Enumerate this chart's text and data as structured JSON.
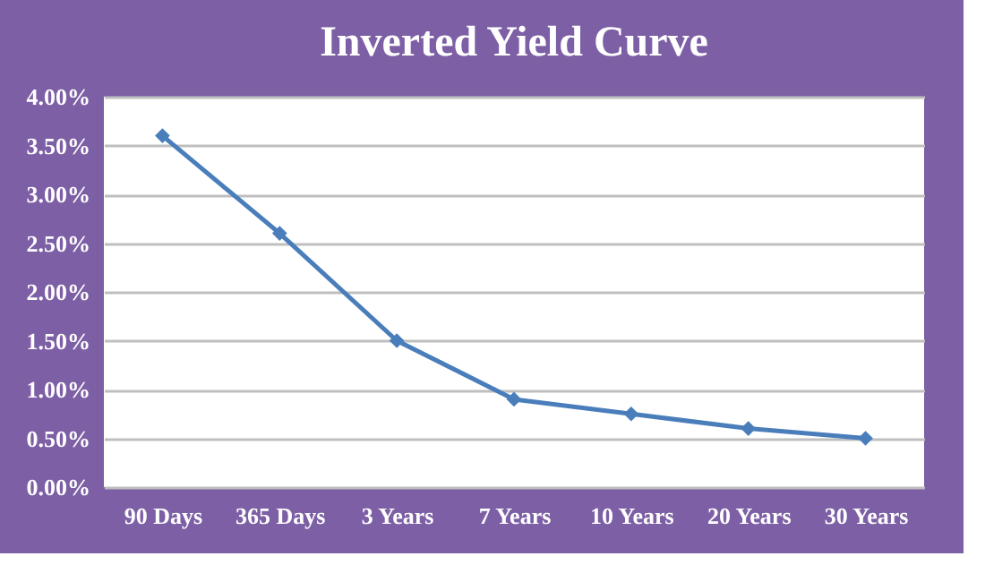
{
  "chart_data": {
    "type": "line",
    "title": "Inverted Yield Curve",
    "categories": [
      "90 Days",
      "365 Days",
      "3 Years",
      "7 Years",
      "10 Years",
      "20 Years",
      "30 Years"
    ],
    "series": [
      {
        "color": "#4a7ebb",
        "values": [
          3.6,
          2.6,
          1.5,
          0.9,
          0.75,
          0.6,
          0.5
        ]
      }
    ],
    "ylim": [
      0,
      4
    ],
    "yticks": [
      {
        "value": 0,
        "label": "0.00%"
      },
      {
        "value": 0.5,
        "label": "0.50%"
      },
      {
        "value": 1,
        "label": "1.00%"
      },
      {
        "value": 1.5,
        "label": "1.50%"
      },
      {
        "value": 2,
        "label": "2.00%"
      },
      {
        "value": 2.5,
        "label": "2.50%"
      },
      {
        "value": 3,
        "label": "3.00%"
      },
      {
        "value": 3.5,
        "label": "3.50%"
      },
      {
        "value": 4,
        "label": "4.00%"
      }
    ],
    "grid": "y",
    "marker": "diamond",
    "line_style": "solid"
  }
}
